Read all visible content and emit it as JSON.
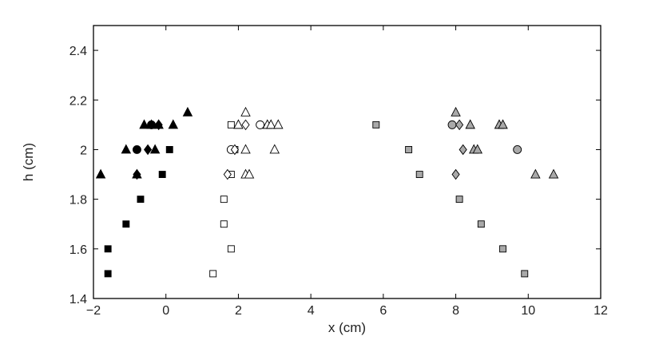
{
  "chart_data": {
    "type": "scatter",
    "title": "",
    "xlabel": "x (cm)",
    "ylabel": "h (cm)",
    "xlim": [
      -2,
      12
    ],
    "ylim": [
      1.4,
      2.5
    ],
    "xticks": [
      -2,
      0,
      2,
      4,
      6,
      8,
      10,
      12
    ],
    "yticks": [
      1.4,
      1.6,
      1.8,
      2,
      2.2,
      2.4
    ],
    "xtick_labels": [
      "−2",
      "0",
      "2",
      "4",
      "6",
      "8",
      "10",
      "12"
    ],
    "ytick_labels": [
      "1.4",
      "1.6",
      "1.8",
      "2",
      "2.2",
      "2.4"
    ],
    "grid": false,
    "legend": "none",
    "colors": {
      "black": "#000000",
      "white": "#ffffff",
      "gray": "#a9a9a9"
    },
    "series": [
      {
        "marker": "square",
        "fill": "black",
        "points": [
          [
            -1.6,
            1.5
          ],
          [
            -1.6,
            1.6
          ],
          [
            -1.1,
            1.7
          ],
          [
            -0.7,
            1.8
          ],
          [
            -0.1,
            1.9
          ],
          [
            0.1,
            2.0
          ]
        ]
      },
      {
        "marker": "triangle",
        "fill": "black",
        "points": [
          [
            -1.8,
            1.9
          ],
          [
            -1.1,
            2.0
          ],
          [
            -0.8,
            1.9
          ],
          [
            -0.6,
            2.1
          ],
          [
            -0.3,
            2.0
          ],
          [
            0.2,
            2.1
          ],
          [
            0.6,
            2.15
          ],
          [
            -0.4,
            2.1
          ],
          [
            -0.2,
            2.1
          ]
        ]
      },
      {
        "marker": "circle",
        "fill": "black",
        "points": [
          [
            -0.8,
            2.0
          ],
          [
            -0.4,
            2.1
          ]
        ]
      },
      {
        "marker": "diamond",
        "fill": "black",
        "points": [
          [
            -0.8,
            1.9
          ],
          [
            -0.5,
            2.0
          ],
          [
            -0.2,
            2.1
          ]
        ]
      },
      {
        "marker": "square",
        "fill": "white",
        "points": [
          [
            1.3,
            1.5
          ],
          [
            1.8,
            1.6
          ],
          [
            1.6,
            1.7
          ],
          [
            1.6,
            1.8
          ],
          [
            1.8,
            1.9
          ],
          [
            1.9,
            2.0
          ],
          [
            1.8,
            2.1
          ]
        ]
      },
      {
        "marker": "triangle",
        "fill": "white",
        "points": [
          [
            2.2,
            2.15
          ],
          [
            2.0,
            2.1
          ],
          [
            2.2,
            2.0
          ],
          [
            2.2,
            1.9
          ],
          [
            2.3,
            1.9
          ],
          [
            2.8,
            2.1
          ],
          [
            2.9,
            2.1
          ],
          [
            3.1,
            2.1
          ],
          [
            3.0,
            2.0
          ]
        ]
      },
      {
        "marker": "circle",
        "fill": "white",
        "points": [
          [
            1.8,
            2.0
          ],
          [
            2.6,
            2.1
          ]
        ]
      },
      {
        "marker": "diamond",
        "fill": "white",
        "points": [
          [
            1.7,
            1.9
          ],
          [
            1.9,
            2.0
          ],
          [
            2.2,
            2.1
          ]
        ]
      },
      {
        "marker": "square",
        "fill": "gray",
        "points": [
          [
            5.8,
            2.1
          ],
          [
            6.7,
            2.0
          ],
          [
            7.0,
            1.9
          ],
          [
            8.1,
            1.8
          ],
          [
            8.7,
            1.7
          ],
          [
            9.3,
            1.6
          ],
          [
            9.9,
            1.5
          ]
        ]
      },
      {
        "marker": "triangle",
        "fill": "gray",
        "points": [
          [
            8.0,
            2.15
          ],
          [
            8.4,
            2.1
          ],
          [
            8.5,
            2.0
          ],
          [
            8.6,
            2.0
          ],
          [
            9.2,
            2.1
          ],
          [
            9.3,
            2.1
          ],
          [
            10.2,
            1.9
          ],
          [
            10.7,
            1.9
          ]
        ]
      },
      {
        "marker": "circle",
        "fill": "gray",
        "points": [
          [
            7.9,
            2.1
          ],
          [
            9.7,
            2.0
          ]
        ]
      },
      {
        "marker": "diamond",
        "fill": "gray",
        "points": [
          [
            8.0,
            1.9
          ],
          [
            8.1,
            2.1
          ],
          [
            8.2,
            2.0
          ]
        ]
      }
    ]
  }
}
